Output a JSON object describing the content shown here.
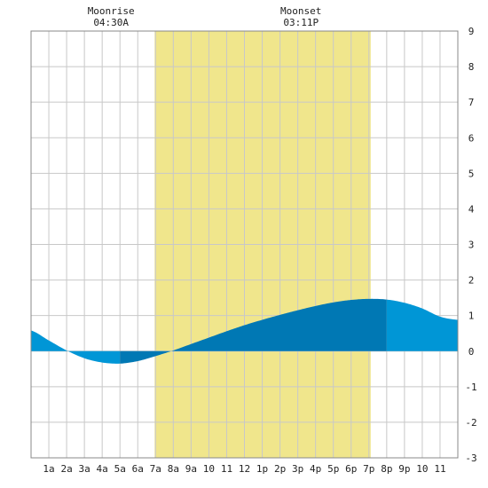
{
  "chart_data": {
    "type": "area",
    "x_unit": "hour of day",
    "x_range": [
      0,
      24
    ],
    "ylim": [
      -3,
      9
    ],
    "y_ticks": [
      -3,
      -2,
      -1,
      0,
      1,
      2,
      3,
      4,
      5,
      6,
      7,
      8,
      9
    ],
    "x_tick_labels": [
      {
        "hour": 1,
        "label": "1a"
      },
      {
        "hour": 2,
        "label": "2a"
      },
      {
        "hour": 3,
        "label": "3a"
      },
      {
        "hour": 4,
        "label": "4a"
      },
      {
        "hour": 5,
        "label": "5a"
      },
      {
        "hour": 6,
        "label": "6a"
      },
      {
        "hour": 7,
        "label": "7a"
      },
      {
        "hour": 8,
        "label": "8a"
      },
      {
        "hour": 9,
        "label": "9a"
      },
      {
        "hour": 10,
        "label": "10"
      },
      {
        "hour": 11,
        "label": "11"
      },
      {
        "hour": 12,
        "label": "12"
      },
      {
        "hour": 13,
        "label": "1p"
      },
      {
        "hour": 14,
        "label": "2p"
      },
      {
        "hour": 15,
        "label": "3p"
      },
      {
        "hour": 16,
        "label": "4p"
      },
      {
        "hour": 17,
        "label": "5p"
      },
      {
        "hour": 18,
        "label": "6p"
      },
      {
        "hour": 19,
        "label": "7p"
      },
      {
        "hour": 20,
        "label": "8p"
      },
      {
        "hour": 21,
        "label": "9p"
      },
      {
        "hour": 22,
        "label": "10"
      },
      {
        "hour": 23,
        "label": "11"
      }
    ],
    "grid": true,
    "daylight": {
      "start_hour": 6.95,
      "end_hour": 19.1
    },
    "moon_events": [
      {
        "name": "Moonrise",
        "time": "04:30A",
        "hour": 4.5
      },
      {
        "name": "Moonset",
        "time": "03:11P",
        "hour": 15.18
      }
    ],
    "series": [
      {
        "values": [
          {
            "hour": 0,
            "value": 0.58
          },
          {
            "hour": 1,
            "value": 0.3
          },
          {
            "hour": 2,
            "value": 0.02
          },
          {
            "hour": 3,
            "value": -0.2
          },
          {
            "hour": 4,
            "value": -0.32
          },
          {
            "hour": 5,
            "value": -0.35
          },
          {
            "hour": 6,
            "value": -0.28
          },
          {
            "hour": 7,
            "value": -0.14
          },
          {
            "hour": 8,
            "value": 0.02
          },
          {
            "hour": 9,
            "value": 0.2
          },
          {
            "hour": 10,
            "value": 0.38
          },
          {
            "hour": 11,
            "value": 0.56
          },
          {
            "hour": 12,
            "value": 0.73
          },
          {
            "hour": 13,
            "value": 0.88
          },
          {
            "hour": 14,
            "value": 1.02
          },
          {
            "hour": 15,
            "value": 1.15
          },
          {
            "hour": 16,
            "value": 1.27
          },
          {
            "hour": 17,
            "value": 1.37
          },
          {
            "hour": 18,
            "value": 1.44
          },
          {
            "hour": 19,
            "value": 1.47
          },
          {
            "hour": 20,
            "value": 1.45
          },
          {
            "hour": 21,
            "value": 1.36
          },
          {
            "hour": 22,
            "value": 1.2
          },
          {
            "hour": 23,
            "value": 0.97
          },
          {
            "hour": 24,
            "value": 0.88
          }
        ],
        "color": "#0096d6",
        "dark_color": "#0078b4",
        "dark_segment": {
          "start_hour": 5.0,
          "end_hour": 20.0
        }
      }
    ]
  },
  "colors": {
    "daylight": "#f0e68c",
    "grid": "#c8c8c8",
    "border": "#888888"
  }
}
